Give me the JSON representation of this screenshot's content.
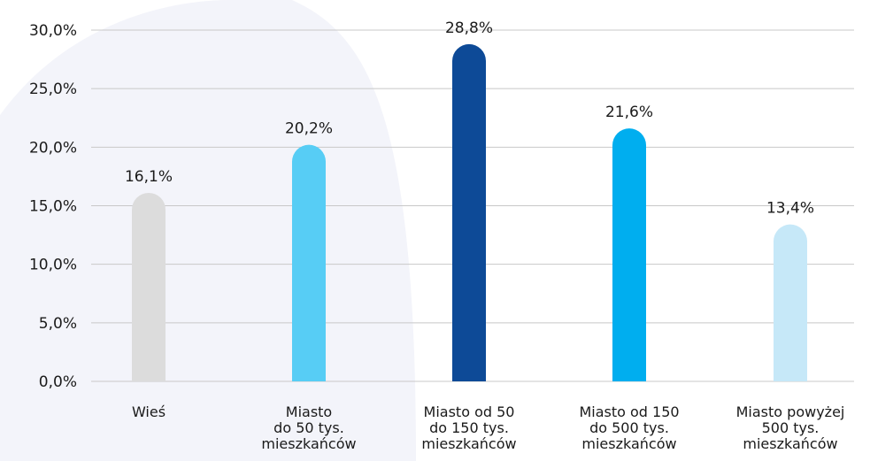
{
  "chart_data": {
    "type": "bar",
    "categories": [
      [
        "Wieś"
      ],
      [
        "Miasto",
        "do 50 tys.",
        "mieszkańców"
      ],
      [
        "Miasto od 50",
        "do 150 tys.",
        "mieszkańców"
      ],
      [
        "Miasto od 150",
        "do 500 tys.",
        "mieszkańców"
      ],
      [
        "Miasto powyżej",
        "500 tys.",
        "mieszkańców"
      ]
    ],
    "values": [
      16.1,
      20.2,
      28.8,
      21.6,
      13.4
    ],
    "value_labels": [
      "16,1%",
      "20,2%",
      "28,8%",
      "21,6%",
      "13,4%"
    ],
    "bar_colors": [
      "#dcdcdc",
      "#57cdf5",
      "#0d4a97",
      "#00aeef",
      "#c6e8f8"
    ],
    "y_ticks": [
      0,
      5,
      10,
      15,
      20,
      25,
      30
    ],
    "y_tick_labels": [
      "0,0%",
      "5,0%",
      "10,0%",
      "15,0%",
      "20,0%",
      "25,0%",
      "30,0%"
    ],
    "ylim": [
      0,
      30
    ],
    "grid": true,
    "title": "",
    "xlabel": "",
    "ylabel": ""
  }
}
